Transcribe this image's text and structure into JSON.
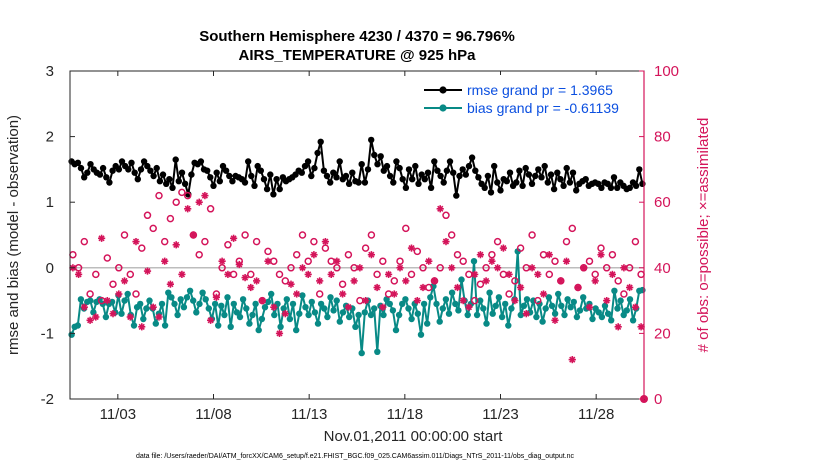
{
  "chart_data": {
    "type": "line",
    "title": "Southern Hemisphere 4230 / 4370 = 96.796%",
    "subtitle": "AIRS_TEMPERATURE @ 925 hPa",
    "xlabel": "Nov.01,2011 00:00:00 start",
    "ylabel_left": "rmse and bias (model - observation)",
    "ylabel_right": "# of obs: o=possible; ×=assimilated",
    "footnote": "data file: /Users/raeder/DAI/ATM_forcXX/CAM6_setup/f.e21.FHIST_BGC.f09_025.CAM6assim.011/Diags_NTrS_2011-11/obs_diag_output.nc",
    "xlim": [
      0.5,
      30.5
    ],
    "ylim_left": [
      -2,
      3
    ],
    "ylim_right": [
      0,
      100
    ],
    "x_ticks": [
      3,
      8,
      13,
      18,
      23,
      28
    ],
    "x_tick_labels": [
      "11/03",
      "11/08",
      "11/13",
      "11/18",
      "11/23",
      "11/28"
    ],
    "y_left_ticks": [
      -2,
      -1,
      0,
      1,
      2,
      3
    ],
    "y_left_tick_labels": [
      "-2",
      "-1",
      "0",
      "1",
      "2",
      "3"
    ],
    "y_right_ticks": [
      0,
      20,
      40,
      60,
      80,
      100
    ],
    "y_right_tick_labels": [
      "0",
      "20",
      "40",
      "60",
      "80",
      "100"
    ],
    "zero_line": 0,
    "last_point_right": 0,
    "series": [
      {
        "name": "rmse grand pr = 1.3965",
        "color": "#000000",
        "axis": "left",
        "values": [
          1.62,
          1.58,
          1.6,
          1.52,
          1.38,
          1.45,
          1.58,
          1.5,
          1.45,
          1.42,
          1.52,
          1.38,
          1.3,
          1.48,
          1.55,
          1.5,
          1.62,
          1.55,
          1.5,
          1.6,
          1.45,
          1.35,
          1.5,
          1.62,
          1.55,
          1.48,
          1.4,
          1.52,
          1.32,
          1.42,
          1.28,
          1.35,
          1.22,
          1.65,
          1.32,
          1.45,
          1.28,
          1.12,
          1.42,
          1.6,
          1.58,
          1.62,
          1.5,
          1.48,
          1.38,
          1.25,
          1.45,
          1.32,
          1.55,
          1.48,
          1.4,
          1.32,
          1.4,
          1.38,
          1.35,
          1.3,
          1.62,
          1.4,
          1.25,
          1.55,
          1.48,
          1.35,
          1.2,
          1.42,
          1.12,
          1.35,
          1.2,
          1.38,
          1.32,
          1.35,
          1.38,
          1.42,
          1.48,
          1.45,
          1.55,
          1.62,
          1.4,
          1.52,
          1.75,
          1.92,
          1.48,
          1.4,
          1.3,
          1.45,
          1.38,
          1.62,
          1.35,
          1.4,
          1.28,
          1.45,
          1.32,
          1.3,
          1.58,
          1.3,
          1.5,
          1.95,
          1.72,
          1.58,
          1.7,
          1.48,
          1.55,
          1.4,
          1.3,
          1.62,
          1.52,
          1.35,
          1.22,
          1.5,
          1.35,
          1.55,
          1.28,
          1.42,
          1.35,
          1.45,
          1.22,
          1.62,
          1.48,
          1.4,
          1.3,
          1.48,
          1.62,
          1.45,
          1.1,
          1.4,
          1.5,
          1.42,
          1.55,
          1.68,
          1.48,
          1.38,
          1.28,
          1.22,
          1.4,
          1.15,
          1.55,
          1.3,
          1.18,
          1.35,
          1.32,
          1.45,
          1.25,
          1.3,
          1.48,
          1.25,
          1.52,
          1.42,
          1.28,
          1.4,
          1.5,
          1.38,
          1.55,
          1.3,
          1.42,
          1.2,
          1.45,
          1.35,
          1.25,
          1.52,
          1.3,
          1.45,
          1.18,
          1.28,
          1.32,
          1.35,
          1.25,
          1.28,
          1.3,
          1.28,
          1.22,
          1.3,
          1.28,
          1.22,
          1.38,
          1.22,
          1.3,
          1.25,
          1.2,
          1.22,
          1.3,
          1.25,
          1.5,
          1.28
        ]
      },
      {
        "name": "bias grand pr = -0.61139",
        "color": "#088a86",
        "axis": "left",
        "values": [
          -1.02,
          -0.9,
          -0.88,
          -0.48,
          -0.62,
          -0.52,
          -0.5,
          -0.68,
          -0.52,
          -0.48,
          -0.55,
          -0.75,
          -0.55,
          -0.52,
          -0.68,
          -0.42,
          -0.7,
          -0.5,
          -0.4,
          -0.72,
          -0.88,
          -0.6,
          -0.55,
          -0.78,
          -0.62,
          -0.5,
          -0.62,
          -0.85,
          -0.7,
          -0.55,
          -0.88,
          -0.38,
          -0.45,
          -0.55,
          -0.72,
          -0.48,
          -0.6,
          -0.45,
          -0.35,
          -0.5,
          -0.68,
          -0.55,
          -0.38,
          -0.48,
          -0.62,
          -0.78,
          -0.55,
          -0.88,
          -0.58,
          -0.72,
          -0.45,
          -0.9,
          -0.55,
          -0.68,
          -0.75,
          -0.48,
          -0.62,
          -0.85,
          -0.72,
          -0.55,
          -0.95,
          -0.78,
          -0.6,
          -0.52,
          -0.4,
          -0.72,
          -0.55,
          -0.9,
          -0.62,
          -0.48,
          -0.78,
          -0.55,
          -0.95,
          -0.7,
          -0.42,
          -0.6,
          -0.72,
          -0.52,
          -0.68,
          -0.85,
          -0.55,
          -0.62,
          -0.75,
          -0.45,
          -0.65,
          -0.5,
          -0.82,
          -0.68,
          -0.58,
          -0.75,
          -0.62,
          -0.9,
          -0.72,
          -1.3,
          -0.68,
          -0.5,
          -0.72,
          -0.62,
          -1.28,
          -0.58,
          -0.72,
          -0.48,
          -0.55,
          -0.65,
          -0.95,
          -0.72,
          -0.55,
          -0.48,
          -0.62,
          -0.78,
          -0.55,
          -0.7,
          -1.02,
          -0.55,
          -0.85,
          -0.45,
          -0.28,
          -0.55,
          -0.82,
          -0.62,
          -0.48,
          -0.7,
          -0.38,
          -0.55,
          -0.65,
          -0.18,
          -0.5,
          -0.72,
          -0.55,
          0.1,
          -0.72,
          -0.5,
          -0.62,
          -0.85,
          -0.38,
          -0.7,
          -0.58,
          -0.45,
          -0.75,
          -0.55,
          -0.88,
          -0.62,
          -0.48,
          0.25,
          -0.72,
          -0.58,
          -0.48,
          -0.68,
          -0.5,
          -0.75,
          -0.55,
          -0.82,
          -0.62,
          -0.45,
          -0.58,
          -0.7,
          -0.4,
          -0.58,
          -0.72,
          -0.48,
          -0.6,
          -0.52,
          -0.75,
          -0.65,
          -0.45,
          -0.62,
          -0.55,
          -0.78,
          -0.62,
          -0.68,
          -0.75,
          -0.58,
          -0.7,
          -0.8,
          -0.35,
          -0.62,
          -0.5,
          -0.72,
          -0.65,
          -0.48,
          -0.8,
          -0.62,
          -0.35,
          -0.34
        ]
      },
      {
        "name": "obs possible",
        "color": "#d4145a",
        "axis": "right",
        "marker": "circle",
        "values": [
          44,
          40,
          48,
          32,
          38,
          30,
          43,
          35,
          40,
          50,
          38,
          32,
          46,
          56,
          52,
          62,
          48,
          55,
          60,
          63,
          62,
          50,
          44,
          48,
          58,
          32,
          40,
          47,
          38,
          42,
          50,
          38,
          48,
          30,
          45,
          42,
          38,
          36,
          40,
          44,
          50,
          42,
          48,
          32,
          46,
          42,
          40,
          35,
          44,
          40,
          30,
          46,
          50,
          38,
          42,
          32,
          36,
          42,
          52,
          38,
          45,
          40,
          34,
          36,
          40,
          56,
          50,
          44,
          42,
          38,
          30,
          35,
          40,
          44,
          48,
          38,
          32,
          36,
          46,
          40,
          50,
          30,
          44,
          38,
          42,
          36,
          48,
          52,
          34,
          40,
          42,
          38,
          46,
          40,
          44,
          36,
          32,
          40,
          48,
          38
        ]
      },
      {
        "name": "obs assimilated",
        "color": "#d4145a",
        "axis": "right",
        "marker": "star",
        "values": [
          40,
          38,
          28,
          24,
          25,
          49,
          30,
          26,
          32,
          36,
          25,
          48,
          22,
          39,
          28,
          25,
          42,
          35,
          47,
          38,
          58,
          50,
          60,
          62,
          24,
          31,
          42,
          38,
          49,
          41,
          37,
          34,
          36,
          30,
          42,
          28,
          20,
          26,
          35,
          32,
          40,
          38,
          44,
          36,
          48,
          38,
          42,
          32,
          28,
          36,
          40,
          30,
          44,
          34,
          28,
          38,
          32,
          40,
          36,
          46,
          30,
          34,
          42,
          36,
          58,
          48,
          40,
          34,
          30,
          28,
          38,
          44,
          36,
          42,
          40,
          46,
          38,
          30,
          34,
          26,
          40,
          38,
          32,
          44,
          24,
          36,
          42,
          12,
          34,
          40,
          28,
          36,
          44,
          30,
          38,
          22,
          40,
          34,
          28,
          22
        ]
      }
    ]
  }
}
